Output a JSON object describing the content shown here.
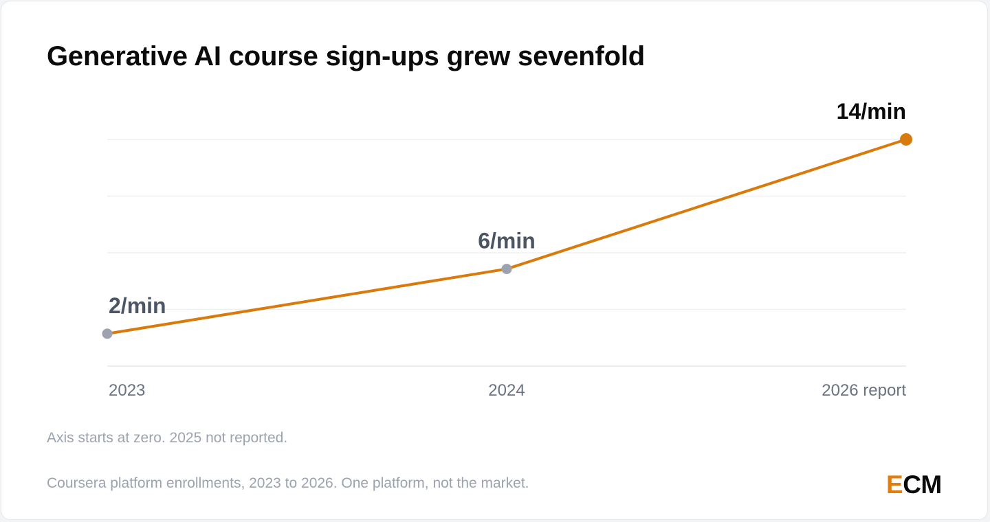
{
  "title": "Generative AI course sign‑ups grew sevenfold",
  "chart_data": {
    "type": "line",
    "categories": [
      "2023",
      "2024",
      "2026 report"
    ],
    "series": [
      {
        "values": [
          2,
          6,
          14
        ],
        "labels": [
          "2/min",
          "6/min",
          "14/min"
        ]
      }
    ],
    "ylim": [
      0,
      14
    ],
    "grid": true,
    "highlight_color": "#d97a0c",
    "point_color": "#9ca3af",
    "label_color": "#4b5563",
    "highlight_label_color": "#0b0b0c"
  },
  "notes": {
    "axis": "Axis starts at zero. 2025 not reported.",
    "source": "Coursera platform enrollments, 2023 to 2026. One platform, not the market."
  },
  "logo": {
    "accent_letter": "E",
    "rest": "CM",
    "accent_color": "#e07f0f"
  }
}
